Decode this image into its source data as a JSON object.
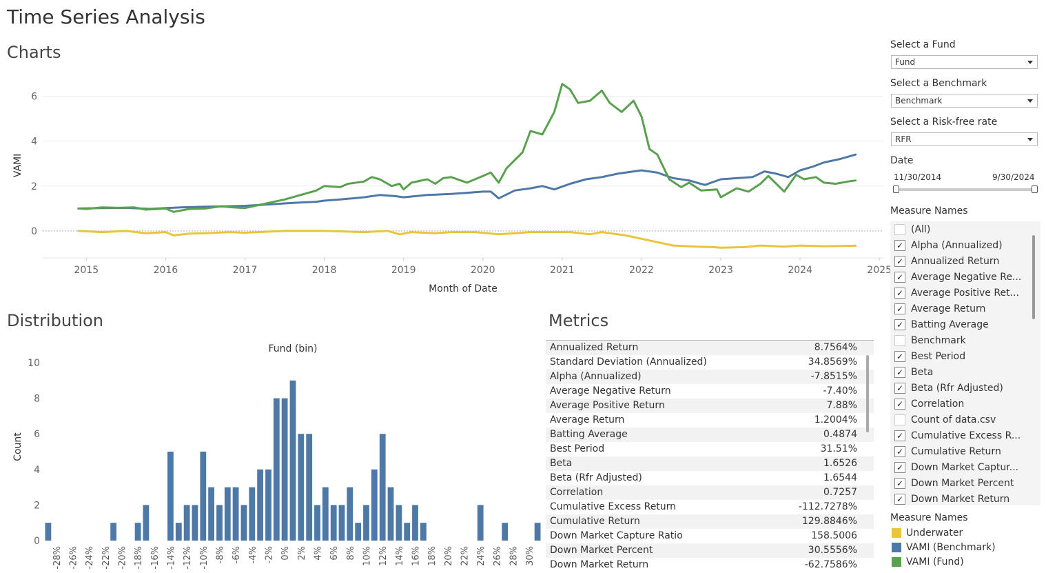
{
  "page_title": "Time Series Analysis",
  "sections": {
    "charts": "Charts",
    "distribution": "Distribution",
    "metrics": "Metrics"
  },
  "filters": {
    "fund": {
      "label": "Select a Fund",
      "value": "Fund"
    },
    "benchmark": {
      "label": "Select a Benchmark",
      "value": "Benchmark"
    },
    "rfr": {
      "label": "Select a Risk-free rate",
      "value": "RFR"
    },
    "date": {
      "label": "Date",
      "start": "11/30/2014",
      "end": "9/30/2024"
    }
  },
  "measure_filter": {
    "title": "Measure Names",
    "items": [
      {
        "label": "(All)",
        "checked": false
      },
      {
        "label": "Alpha (Annualized)",
        "checked": true
      },
      {
        "label": "Annualized Return",
        "checked": true
      },
      {
        "label": "Average Negative Re...",
        "checked": true
      },
      {
        "label": "Average Positive Ret...",
        "checked": true
      },
      {
        "label": "Average Return",
        "checked": true
      },
      {
        "label": "Batting Average",
        "checked": true
      },
      {
        "label": "Benchmark",
        "checked": false
      },
      {
        "label": "Best Period",
        "checked": true
      },
      {
        "label": "Beta",
        "checked": true
      },
      {
        "label": "Beta (Rfr Adjusted)",
        "checked": true
      },
      {
        "label": "Correlation",
        "checked": true
      },
      {
        "label": "Count of data.csv",
        "checked": false
      },
      {
        "label": "Cumulative Excess R...",
        "checked": true
      },
      {
        "label": "Cumulative Return",
        "checked": true
      },
      {
        "label": "Down Market Captur...",
        "checked": true
      },
      {
        "label": "Down Market Percent",
        "checked": true
      },
      {
        "label": "Down Market Return",
        "checked": true
      }
    ]
  },
  "legend": {
    "title": "Measure Names",
    "items": [
      {
        "label": "Underwater",
        "color": "#e8c53a"
      },
      {
        "label": "VAMI (Benchmark)",
        "color": "#4e79a7"
      },
      {
        "label": "VAMI (Fund)",
        "color": "#59a14f"
      }
    ]
  },
  "metrics": [
    {
      "name": "Annualized Return",
      "value": "8.7564%"
    },
    {
      "name": "Standard Deviation (Annualized)",
      "value": "34.8569%"
    },
    {
      "name": "Alpha (Annualized)",
      "value": "-7.8515%"
    },
    {
      "name": "Average Negative Return",
      "value": "-7.40%"
    },
    {
      "name": "Average Positive Return",
      "value": "7.88%"
    },
    {
      "name": "Average Return",
      "value": "1.2004%"
    },
    {
      "name": "Batting Average",
      "value": "0.4874"
    },
    {
      "name": "Best Period",
      "value": "31.51%"
    },
    {
      "name": "Beta",
      "value": "1.6526"
    },
    {
      "name": "Beta (Rfr Adjusted)",
      "value": "1.6544"
    },
    {
      "name": "Correlation",
      "value": "0.7257"
    },
    {
      "name": "Cumulative Excess Return",
      "value": "-112.7278%"
    },
    {
      "name": "Cumulative Return",
      "value": "129.8846%"
    },
    {
      "name": "Down Market Capture Ratio",
      "value": "158.5006"
    },
    {
      "name": "Down Market Percent",
      "value": "30.5556%"
    },
    {
      "name": "Down Market Return",
      "value": "-62.7586%"
    }
  ],
  "chart_data": [
    {
      "type": "line",
      "xlabel": "Month of Date",
      "ylabel": "VAMI",
      "xlim": [
        2014.45,
        2025.05
      ],
      "ylim": [
        -1.2,
        7
      ],
      "x_ticks": [
        2015,
        2016,
        2017,
        2018,
        2019,
        2020,
        2021,
        2022,
        2023,
        2024,
        2025
      ],
      "y_ticks": [
        0,
        2,
        4,
        6
      ],
      "grid": true,
      "series": [
        {
          "name": "VAMI (Fund)",
          "color": "#59a14f",
          "x": [
            2014.9,
            2015.0,
            2015.2,
            2015.4,
            2015.6,
            2015.75,
            2016.0,
            2016.1,
            2016.3,
            2016.5,
            2016.7,
            2016.85,
            2017.0,
            2017.3,
            2017.5,
            2017.7,
            2017.9,
            2018.0,
            2018.2,
            2018.3,
            2018.5,
            2018.6,
            2018.7,
            2018.85,
            2018.95,
            2019.0,
            2019.1,
            2019.3,
            2019.4,
            2019.5,
            2019.6,
            2019.8,
            2019.9,
            2020.0,
            2020.1,
            2020.2,
            2020.3,
            2020.5,
            2020.6,
            2020.75,
            2020.9,
            2021.0,
            2021.1,
            2021.2,
            2021.35,
            2021.5,
            2021.6,
            2021.75,
            2021.9,
            2022.0,
            2022.1,
            2022.2,
            2022.35,
            2022.5,
            2022.6,
            2022.75,
            2022.95,
            2023.0,
            2023.2,
            2023.35,
            2023.5,
            2023.6,
            2023.8,
            2023.95,
            2024.05,
            2024.2,
            2024.3,
            2024.45,
            2024.6,
            2024.7
          ],
          "values": [
            1.0,
            0.98,
            1.05,
            1.03,
            1.05,
            0.95,
            1.0,
            0.85,
            0.98,
            1.0,
            1.1,
            1.05,
            1.02,
            1.25,
            1.4,
            1.6,
            1.8,
            2.0,
            1.95,
            2.1,
            2.2,
            2.4,
            2.3,
            2.0,
            2.1,
            1.85,
            2.15,
            2.3,
            2.1,
            2.35,
            2.4,
            2.15,
            2.3,
            2.45,
            2.6,
            2.15,
            2.8,
            3.5,
            4.45,
            4.3,
            5.3,
            6.55,
            6.3,
            5.7,
            5.8,
            6.25,
            5.7,
            5.3,
            5.8,
            5.1,
            3.65,
            3.4,
            2.3,
            1.95,
            2.15,
            1.8,
            1.85,
            1.5,
            1.9,
            1.75,
            2.1,
            2.45,
            1.75,
            2.5,
            2.3,
            2.4,
            2.15,
            2.1,
            2.2,
            2.25
          ]
        },
        {
          "name": "VAMI (Benchmark)",
          "color": "#4e79a7",
          "x": [
            2014.9,
            2015.2,
            2015.5,
            2015.8,
            2016.0,
            2016.2,
            2016.5,
            2016.8,
            2017.0,
            2017.3,
            2017.6,
            2017.9,
            2018.0,
            2018.2,
            2018.5,
            2018.7,
            2018.9,
            2019.0,
            2019.3,
            2019.6,
            2019.8,
            2020.0,
            2020.1,
            2020.2,
            2020.4,
            2020.6,
            2020.75,
            2020.9,
            2021.1,
            2021.3,
            2021.5,
            2021.7,
            2021.9,
            2022.0,
            2022.2,
            2022.4,
            2022.6,
            2022.8,
            2023.0,
            2023.2,
            2023.4,
            2023.55,
            2023.7,
            2023.85,
            2024.0,
            2024.15,
            2024.3,
            2024.5,
            2024.7
          ],
          "values": [
            1.0,
            1.02,
            1.03,
            0.98,
            1.02,
            1.05,
            1.08,
            1.1,
            1.12,
            1.18,
            1.25,
            1.3,
            1.35,
            1.4,
            1.5,
            1.6,
            1.55,
            1.5,
            1.6,
            1.65,
            1.7,
            1.75,
            1.75,
            1.45,
            1.8,
            1.9,
            2.0,
            1.85,
            2.1,
            2.3,
            2.4,
            2.55,
            2.65,
            2.7,
            2.6,
            2.35,
            2.25,
            2.05,
            2.3,
            2.35,
            2.4,
            2.65,
            2.55,
            2.4,
            2.7,
            2.85,
            3.05,
            3.2,
            3.4
          ]
        },
        {
          "name": "Underwater",
          "color": "#e8c53a",
          "x": [
            2014.9,
            2015.2,
            2015.5,
            2015.75,
            2016.0,
            2016.1,
            2016.3,
            2016.5,
            2016.8,
            2017.0,
            2017.5,
            2018.0,
            2018.5,
            2018.8,
            2018.95,
            2019.1,
            2019.4,
            2019.6,
            2019.9,
            2020.2,
            2020.4,
            2020.6,
            2020.9,
            2021.1,
            2021.35,
            2021.5,
            2021.8,
            2022.0,
            2022.2,
            2022.4,
            2022.7,
            2022.9,
            2023.0,
            2023.3,
            2023.5,
            2023.8,
            2024.0,
            2024.3,
            2024.7
          ],
          "values": [
            0.0,
            -0.05,
            0.0,
            -0.1,
            -0.05,
            -0.2,
            -0.12,
            -0.1,
            -0.05,
            -0.08,
            0.0,
            0.0,
            -0.05,
            0.0,
            -0.15,
            -0.05,
            -0.1,
            -0.05,
            -0.05,
            -0.15,
            -0.1,
            -0.05,
            -0.05,
            -0.05,
            -0.15,
            -0.05,
            -0.2,
            -0.35,
            -0.5,
            -0.65,
            -0.7,
            -0.72,
            -0.75,
            -0.72,
            -0.65,
            -0.7,
            -0.65,
            -0.68,
            -0.66
          ]
        }
      ]
    },
    {
      "type": "bar",
      "title": "Fund (bin)",
      "xlabel": "",
      "ylabel": "Count",
      "ylim": [
        0,
        10
      ],
      "y_ticks": [
        0,
        2,
        4,
        6,
        8,
        10
      ],
      "tick_labels": [
        "-28%",
        "-26%",
        "-24%",
        "-22%",
        "-20%",
        "-18%",
        "-16%",
        "-14%",
        "-12%",
        "-10%",
        "-8%",
        "-6%",
        "-4%",
        "-2%",
        "0%",
        "2%",
        "4%",
        "6%",
        "8%",
        "10%",
        "12%",
        "14%",
        "16%",
        "18%",
        "20%",
        "22%",
        "24%",
        "26%",
        "28%",
        "30%"
      ],
      "bin_starts": [
        -29,
        -28,
        -27,
        -26,
        -25,
        -24,
        -23,
        -22,
        -21,
        -20,
        -19,
        -18,
        -17,
        -16,
        -15,
        -14,
        -13,
        -12,
        -11,
        -10,
        -9,
        -8,
        -7,
        -6,
        -5,
        -4,
        -3,
        -2,
        -1,
        0,
        1,
        2,
        3,
        4,
        5,
        6,
        7,
        8,
        9,
        10,
        11,
        12,
        13,
        14,
        15,
        16,
        17,
        18,
        19,
        20,
        21,
        22,
        23,
        24,
        25,
        26,
        27,
        28,
        29,
        30,
        31
      ],
      "values": [
        1,
        0,
        0,
        0,
        0,
        0,
        0,
        0,
        1,
        0,
        0,
        1,
        2,
        0,
        0,
        5,
        1,
        2,
        2,
        5,
        3,
        2,
        3,
        3,
        2,
        3,
        4,
        4,
        8,
        8,
        9,
        6,
        6,
        2,
        3,
        2,
        2,
        3,
        1,
        2,
        4,
        6,
        3,
        2,
        1,
        2,
        1,
        0,
        0,
        0,
        0,
        0,
        0,
        2,
        0,
        0,
        1,
        0,
        0,
        0,
        1
      ]
    }
  ]
}
